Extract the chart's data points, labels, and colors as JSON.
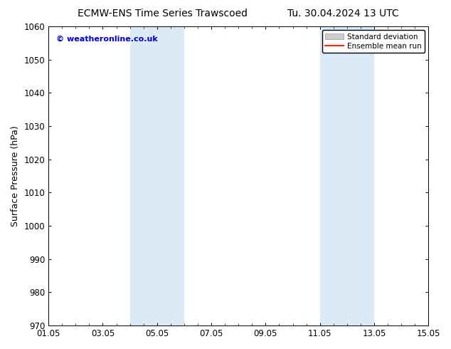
{
  "title_left": "ECMW-ENS Time Series Trawscoed",
  "title_right": "Tu. 30.04.2024 13 UTC",
  "ylabel": "Surface Pressure (hPa)",
  "ylim": [
    970,
    1060
  ],
  "yticks": [
    970,
    980,
    990,
    1000,
    1010,
    1020,
    1030,
    1040,
    1050,
    1060
  ],
  "xtick_positions": [
    0,
    2,
    4,
    6,
    8,
    10,
    12,
    14
  ],
  "xtick_labels": [
    "01.05",
    "03.05",
    "05.05",
    "07.05",
    "09.05",
    "11.05",
    "13.05",
    "15.05"
  ],
  "xlim": [
    0,
    14
  ],
  "shaded_bands": [
    {
      "x_start": 3,
      "x_end": 5
    },
    {
      "x_start": 10,
      "x_end": 12
    }
  ],
  "band_color": "#daeaf7",
  "watermark_text": "© weatheronline.co.uk",
  "watermark_color": "#0000cc",
  "legend_items": [
    {
      "label": "Standard deviation",
      "color": "#cccccc",
      "type": "patch"
    },
    {
      "label": "Ensemble mean run",
      "color": "#ff2200",
      "type": "line"
    }
  ],
  "background_color": "#ffffff",
  "title_fontsize": 10,
  "tick_fontsize": 8.5,
  "ylabel_fontsize": 9
}
